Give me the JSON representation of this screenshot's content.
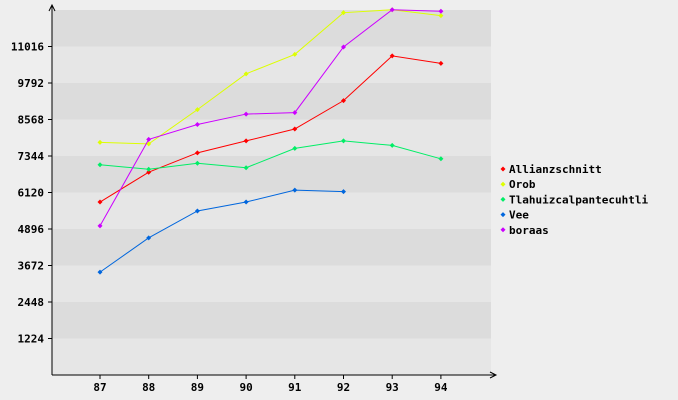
{
  "chart_data": {
    "type": "line",
    "categories": [
      "87",
      "88",
      "89",
      "90",
      "91",
      "92",
      "93",
      "94"
    ],
    "y_ticks": [
      1224,
      2448,
      3672,
      4896,
      6120,
      7344,
      8568,
      9792,
      11016
    ],
    "ylim": [
      0,
      12240
    ],
    "grid": "horizontal alternating bands",
    "legend_position": "right",
    "series": [
      {
        "name": "Allianzschnitt",
        "color": "#ff0000",
        "values": [
          5800,
          6800,
          7450,
          7850,
          8250,
          9200,
          10700,
          10450
        ]
      },
      {
        "name": "Orob",
        "color": "#ddff00",
        "values": [
          7800,
          7750,
          8900,
          10100,
          10750,
          12150,
          12250,
          12050
        ]
      },
      {
        "name": "Tlahuizcalpantecuhtli",
        "color": "#00ee66",
        "values": [
          7050,
          6900,
          7100,
          6950,
          7600,
          7850,
          7700,
          7250
        ]
      },
      {
        "name": "Vee",
        "color": "#0066dd",
        "values": [
          3450,
          4600,
          5500,
          5800,
          6200,
          6150,
          null,
          null
        ]
      },
      {
        "name": "boraas",
        "color": "#cc00ff",
        "values": [
          5000,
          7900,
          8400,
          8750,
          8800,
          11000,
          12250,
          12200
        ]
      }
    ]
  }
}
